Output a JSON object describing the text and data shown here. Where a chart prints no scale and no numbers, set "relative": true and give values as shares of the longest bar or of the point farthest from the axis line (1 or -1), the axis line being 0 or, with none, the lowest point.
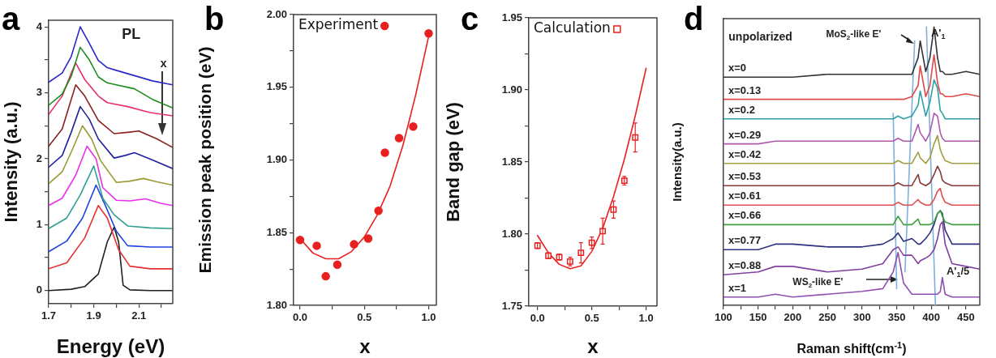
{
  "chart_data": [
    {
      "type": "line",
      "title": "a",
      "xlabel": "Energy (eV)",
      "ylabel": "Intensity (a.u.)",
      "xlim": [
        1.7,
        2.25
      ],
      "ylim": [
        -0.2,
        4.1
      ],
      "xticks": [
        1.7,
        {
          "value": 1.8,
          "label": null
        },
        1.9,
        {
          "value": 2.0,
          "label": null
        },
        2.1,
        {
          "value": 2.2,
          "label": null
        }
      ],
      "yticks": [
        0,
        {
          "value": 0.5,
          "label": null
        },
        1,
        {
          "value": 1.5,
          "label": null
        },
        2,
        {
          "value": 2.5,
          "label": null
        },
        3,
        {
          "value": 3.5,
          "label": null
        },
        4
      ],
      "annotations": [
        "PL",
        "x"
      ],
      "series": [
        {
          "color": "#2828c8",
          "x": [
            1.7,
            1.76,
            1.8,
            1.84,
            1.88,
            1.92,
            1.96,
            2.0,
            2.08,
            2.16,
            2.25
          ],
          "values": [
            3.16,
            3.3,
            3.55,
            4.0,
            3.75,
            3.49,
            3.38,
            3.34,
            3.26,
            3.18,
            3.12
          ]
        },
        {
          "color": "#1a8c1a",
          "x": [
            1.7,
            1.76,
            1.8,
            1.84,
            1.88,
            1.92,
            1.96,
            2.0,
            2.08,
            2.16,
            2.25
          ],
          "values": [
            2.81,
            2.98,
            3.25,
            3.69,
            3.5,
            3.24,
            3.15,
            3.12,
            3.06,
            2.9,
            2.77
          ]
        },
        {
          "color": "#e8306a",
          "x": [
            1.7,
            1.76,
            1.8,
            1.82,
            1.86,
            1.92,
            1.96,
            2.05,
            2.15,
            2.25
          ],
          "values": [
            2.67,
            2.95,
            3.3,
            3.45,
            3.2,
            2.95,
            2.85,
            2.79,
            2.7,
            2.65
          ]
        },
        {
          "color": "#8b2020",
          "x": [
            1.7,
            1.76,
            1.8,
            1.82,
            1.86,
            1.92,
            1.99,
            2.05,
            2.1,
            2.18,
            2.25
          ],
          "values": [
            2.19,
            2.45,
            2.9,
            3.12,
            2.95,
            2.58,
            2.38,
            2.4,
            2.42,
            2.3,
            2.17
          ]
        },
        {
          "color": "#2020a0",
          "x": [
            1.7,
            1.76,
            1.8,
            1.84,
            1.88,
            1.92,
            1.99,
            2.04,
            2.08,
            2.16,
            2.25
          ],
          "values": [
            1.87,
            2.05,
            2.4,
            2.79,
            2.6,
            2.3,
            2.01,
            2.05,
            2.09,
            1.98,
            1.85
          ]
        },
        {
          "color": "#9a9a30",
          "x": [
            1.7,
            1.76,
            1.8,
            1.85,
            1.89,
            1.93,
            2.0,
            2.06,
            2.12,
            2.18,
            2.25
          ],
          "values": [
            1.62,
            1.8,
            2.1,
            2.5,
            2.3,
            1.97,
            1.64,
            1.66,
            1.7,
            1.65,
            1.6
          ]
        },
        {
          "color": "#e830e8",
          "x": [
            1.7,
            1.76,
            1.82,
            1.87,
            1.91,
            1.94,
            2.0,
            2.06,
            2.13,
            2.2,
            2.25
          ],
          "values": [
            1.29,
            1.4,
            1.75,
            2.19,
            2.0,
            1.56,
            1.37,
            1.36,
            1.39,
            1.32,
            1.29
          ]
        },
        {
          "color": "#30a090",
          "x": [
            1.7,
            1.78,
            1.84,
            1.9,
            1.94,
            1.99,
            2.05,
            2.15,
            2.25
          ],
          "values": [
            0.94,
            1.1,
            1.45,
            1.89,
            1.4,
            1.15,
            0.98,
            0.95,
            0.94
          ]
        },
        {
          "color": "#2040e0",
          "x": [
            1.7,
            1.78,
            1.85,
            1.91,
            1.95,
            2.0,
            2.05,
            2.15,
            2.25
          ],
          "values": [
            0.59,
            0.75,
            1.1,
            1.6,
            1.3,
            0.9,
            0.68,
            0.66,
            0.66
          ]
        },
        {
          "color": "#e83030",
          "x": [
            1.7,
            1.78,
            1.86,
            1.92,
            1.96,
            2.01,
            2.06,
            2.15,
            2.25
          ],
          "values": [
            0.33,
            0.42,
            0.8,
            1.29,
            1.1,
            0.62,
            0.37,
            0.33,
            0.33
          ]
        },
        {
          "color": "#202020",
          "x": [
            1.7,
            1.8,
            1.86,
            1.92,
            1.96,
            1.99,
            2.01,
            2.03,
            2.06,
            2.15,
            2.25
          ],
          "values": [
            0,
            0.02,
            0.06,
            0.25,
            0.74,
            0.96,
            0.74,
            0.08,
            0.01,
            0,
            0
          ]
        }
      ]
    },
    {
      "type": "scatter",
      "title": "b",
      "xlabel": "x",
      "ylabel": "Emission peak position (eV)",
      "xlim": [
        -0.05,
        1.06
      ],
      "ylim": [
        1.8,
        2.0
      ],
      "xticks": [
        {
          "value": 0,
          "label": "0.0"
        },
        {
          "value": 0.25,
          "label": null
        },
        {
          "value": 0.5,
          "label": "0.5"
        },
        {
          "value": 0.75,
          "label": null
        },
        {
          "value": 1,
          "label": "1.0"
        }
      ],
      "yticks": [
        {
          "value": 1.8,
          "label": "1.80"
        },
        {
          "value": 1.825,
          "label": null
        },
        {
          "value": 1.85,
          "label": "1.85"
        },
        {
          "value": 1.875,
          "label": null
        },
        {
          "value": 1.9,
          "label": "1.90"
        },
        {
          "value": 1.925,
          "label": null
        },
        {
          "value": 1.95,
          "label": "1.95"
        },
        {
          "value": 1.975,
          "label": null
        },
        {
          "value": 2.0,
          "label": "2.00"
        }
      ],
      "legend": "top left",
      "marker": "circle",
      "series": [
        {
          "name": "Experiment",
          "color": "#e82020",
          "x": [
            0,
            0.13,
            0.2,
            0.29,
            0.42,
            0.53,
            0.61,
            0.66,
            0.77,
            0.88,
            1
          ],
          "values": [
            1.845,
            1.841,
            1.82,
            1.828,
            1.842,
            1.846,
            1.865,
            1.905,
            1.915,
            1.923,
            1.987
          ]
        },
        {
          "type": "line",
          "marker": "none",
          "color": "#e82020",
          "x": [
            0,
            0.1,
            0.2,
            0.3,
            0.4,
            0.5,
            0.6,
            0.7,
            0.8,
            0.9,
            1.0
          ],
          "values": [
            1.846,
            1.836,
            1.832,
            1.832,
            1.837,
            1.847,
            1.862,
            1.882,
            1.91,
            1.945,
            1.985
          ]
        }
      ]
    },
    {
      "type": "scatter",
      "title": "c",
      "xlabel": "x",
      "ylabel": "Band gap (eV)",
      "xlim": [
        -0.08,
        1.1
      ],
      "ylim": [
        1.75,
        1.95
      ],
      "xticks": [
        {
          "value": 0,
          "label": "0.0"
        },
        {
          "value": 0.25,
          "label": null
        },
        {
          "value": 0.5,
          "label": "0.5"
        },
        {
          "value": 0.75,
          "label": null
        },
        {
          "value": 1,
          "label": "1.0"
        }
      ],
      "yticks": [
        {
          "value": 1.75,
          "label": "1.75"
        },
        {
          "value": 1.775,
          "label": null
        },
        {
          "value": 1.8,
          "label": "1.80"
        },
        {
          "value": 1.825,
          "label": null
        },
        {
          "value": 1.85,
          "label": "1.85"
        },
        {
          "value": 1.875,
          "label": null
        },
        {
          "value": 1.9,
          "label": "1.90"
        },
        {
          "value": 1.925,
          "label": null
        },
        {
          "value": 1.95,
          "label": "1.95"
        }
      ],
      "legend": "top left",
      "marker": "square",
      "series": [
        {
          "name": "Calculation",
          "color": "#e82020",
          "x": [
            0,
            0.1,
            0.2,
            0.3,
            0.4,
            0.5,
            0.6,
            0.7,
            0.8,
            0.9
          ],
          "values": [
            1.792,
            1.785,
            1.784,
            1.781,
            1.787,
            1.794,
            1.802,
            1.817,
            1.837,
            1.867
          ],
          "errors": [
            0.002,
            0.002,
            0.002,
            0.003,
            0.007,
            0.004,
            0.009,
            0.006,
            0.003,
            0.01
          ]
        },
        {
          "type": "line",
          "marker": "none",
          "color": "#e82020",
          "x": [
            0,
            0.1,
            0.2,
            0.3,
            0.4,
            0.5,
            0.6,
            0.7,
            0.8,
            0.9,
            1.0
          ],
          "values": [
            1.799,
            1.787,
            1.779,
            1.776,
            1.778,
            1.788,
            1.804,
            1.826,
            1.852,
            1.882,
            1.915
          ]
        }
      ]
    },
    {
      "type": "line",
      "title": "d",
      "xlabel": "Raman shift(cm$^{-1}$)",
      "ylabel": "Intensity(a.u.)",
      "relative": true,
      "xlim": [
        100,
        470
      ],
      "xticks": [
        100,
        {
          "value": 125,
          "label": null
        },
        150,
        {
          "value": 175,
          "label": null
        },
        200,
        {
          "value": 225,
          "label": null
        },
        250,
        {
          "value": 275,
          "label": null
        },
        300,
        {
          "value": 325,
          "label": null
        },
        350,
        {
          "value": 375,
          "label": null
        },
        400,
        {
          "value": 425,
          "label": null
        },
        450
      ],
      "annotations": [
        "unpolarized",
        "MoS$_{2}$-like E'",
        "A'$_{1}$",
        "WS$_{2}$-like E'",
        "A'$_{1}$/5"
      ],
      "x": [
        100,
        150,
        175,
        200,
        250,
        300,
        330,
        345,
        352,
        360,
        372,
        381,
        384,
        392,
        398,
        404,
        409,
        413,
        416,
        420,
        430,
        450,
        470
      ],
      "series": [
        {
          "name": "x=0",
          "color": "#333333",
          "values": [
            0.82,
            0.82,
            0.82,
            0.82,
            0.83,
            0.83,
            0.83,
            0.83,
            0.83,
            0.83,
            0.83,
            0.89,
            0.95,
            0.84,
            0.89,
            1.0,
            0.89,
            0.84,
            0.84,
            0.83,
            0.83,
            0.84,
            0.83
          ]
        },
        {
          "name": "x=0.13",
          "color": "#e04848",
          "values": [
            0.74,
            0.74,
            0.74,
            0.74,
            0.74,
            0.74,
            0.74,
            0.74,
            0.74,
            0.74,
            0.75,
            0.79,
            0.86,
            0.75,
            0.79,
            0.9,
            0.8,
            0.76,
            0.76,
            0.75,
            0.75,
            0.76,
            0.75
          ]
        },
        {
          "name": "x=0.2",
          "color": "#30a0a8",
          "values": [
            0.67,
            0.67,
            0.67,
            0.67,
            0.67,
            0.67,
            0.67,
            0.67,
            0.68,
            0.67,
            0.68,
            0.72,
            0.77,
            0.68,
            0.73,
            0.81,
            0.78,
            0.7,
            0.69,
            0.67,
            0.67,
            0.67,
            0.67
          ]
        },
        {
          "name": "x=0.29",
          "color": "#b058b0",
          "values": [
            0.58,
            0.58,
            0.59,
            0.59,
            0.59,
            0.59,
            0.59,
            0.59,
            0.6,
            0.59,
            0.59,
            0.65,
            0.62,
            0.59,
            0.62,
            0.69,
            0.68,
            0.62,
            0.6,
            0.59,
            0.59,
            0.59,
            0.59
          ]
        },
        {
          "name": "x=0.42",
          "color": "#a0a040",
          "values": [
            0.51,
            0.51,
            0.51,
            0.51,
            0.51,
            0.51,
            0.51,
            0.51,
            0.52,
            0.51,
            0.51,
            0.55,
            0.53,
            0.51,
            0.53,
            0.58,
            0.61,
            0.56,
            0.54,
            0.52,
            0.51,
            0.51,
            0.51
          ]
        },
        {
          "name": "x=0.53",
          "color": "#8b3a3a",
          "values": [
            0.43,
            0.43,
            0.43,
            0.43,
            0.43,
            0.43,
            0.43,
            0.43,
            0.44,
            0.43,
            0.43,
            0.47,
            0.44,
            0.43,
            0.44,
            0.47,
            0.5,
            0.48,
            0.45,
            0.44,
            0.43,
            0.43,
            0.43
          ]
        },
        {
          "name": "x=0.61",
          "color": "#e05050",
          "values": [
            0.36,
            0.36,
            0.36,
            0.36,
            0.36,
            0.36,
            0.36,
            0.36,
            0.37,
            0.36,
            0.36,
            0.38,
            0.37,
            0.36,
            0.36,
            0.38,
            0.41,
            0.42,
            0.39,
            0.37,
            0.36,
            0.36,
            0.36
          ]
        },
        {
          "name": "x=0.66",
          "color": "#40a040",
          "values": [
            0.29,
            0.29,
            0.29,
            0.29,
            0.29,
            0.29,
            0.29,
            0.29,
            0.32,
            0.29,
            0.29,
            0.31,
            0.29,
            0.29,
            0.29,
            0.3,
            0.33,
            0.34,
            0.32,
            0.3,
            0.29,
            0.29,
            0.29
          ]
        },
        {
          "name": "x=0.77",
          "color": "#303080",
          "values": [
            0.2,
            0.2,
            0.22,
            0.22,
            0.21,
            0.21,
            0.22,
            0.24,
            0.26,
            0.23,
            0.24,
            0.22,
            0.22,
            0.24,
            0.26,
            0.29,
            0.33,
            0.34,
            0.33,
            0.27,
            0.22,
            0.22,
            0.22
          ]
        },
        {
          "name": "x=0.88",
          "color": "#8040a0",
          "values": [
            0.11,
            0.12,
            0.14,
            0.14,
            0.12,
            0.13,
            0.15,
            0.2,
            0.21,
            0.18,
            0.18,
            0.15,
            0.16,
            0.17,
            0.18,
            0.2,
            0.24,
            0.29,
            0.3,
            0.22,
            0.15,
            0.14,
            0.13
          ]
        },
        {
          "name": "x=1",
          "color": "#9050b0",
          "values": [
            0.03,
            0.03,
            0.04,
            0.03,
            0.04,
            0.05,
            0.06,
            0.12,
            0.19,
            0.08,
            0.04,
            0.04,
            0.04,
            0.04,
            0.04,
            0.04,
            0.04,
            0.05,
            0.1,
            0.04,
            0.03,
            0.03,
            0.03
          ]
        },
        {
          "color": "#7fb0dc",
          "x": [
            350,
            345
          ],
          "values": [
            0.06,
            0.69
          ]
        },
        {
          "color": "#7fb0dc",
          "x": [
            362,
            376
          ],
          "values": [
            0.12,
            0.95
          ]
        },
        {
          "color": "#7fb0dc",
          "x": [
            406,
            393
          ],
          "values": [
            0,
            1.0
          ]
        }
      ]
    }
  ]
}
